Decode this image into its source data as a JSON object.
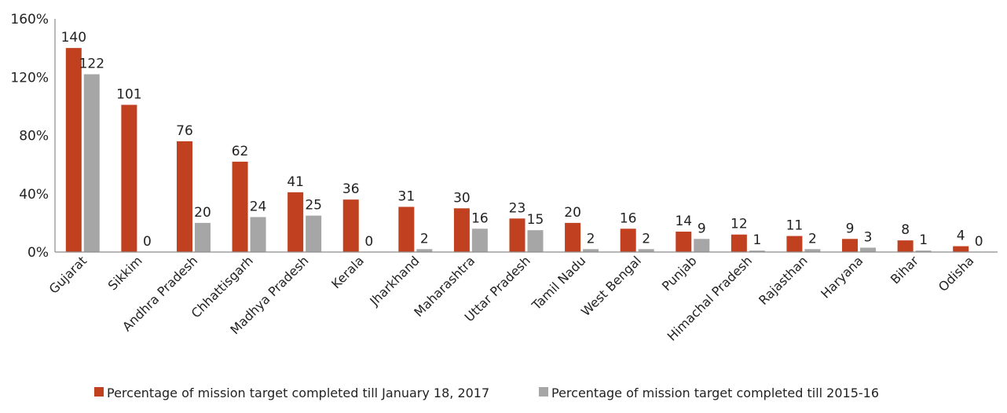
{
  "chart_data": {
    "type": "bar",
    "title": "",
    "xlabel": "",
    "ylabel": "",
    "ylim": [
      0,
      160
    ],
    "yticks": [
      0,
      40,
      80,
      120,
      160
    ],
    "ytick_labels": [
      "0%",
      "40%",
      "80%",
      "120%",
      "160%"
    ],
    "grid": false,
    "legend_position": "bottom",
    "categories": [
      "Gujarat",
      "Sikkim",
      "Andhra Pradesh",
      "Chhattisgarh",
      "Madhya Pradesh",
      "Kerala",
      "Jharkhand",
      "Maharashtra",
      "Uttar Pradesh",
      "Tamil Nadu",
      "West Bengal",
      "Punjab",
      "Himachal Pradesh",
      "Rajasthan",
      "Haryana",
      "Bihar",
      "Odisha"
    ],
    "series": [
      {
        "name": "Percentage of mission target completed till January 18, 2017",
        "color": "#c0401f",
        "values": [
          140,
          101,
          76,
          62,
          41,
          36,
          31,
          30,
          23,
          20,
          16,
          14,
          12,
          11,
          9,
          8,
          4
        ],
        "labels": [
          "140",
          "101",
          "76",
          "62",
          "41",
          "36",
          "31",
          "30",
          "23",
          "20",
          "16",
          "14",
          "12",
          "11",
          "9",
          "8",
          "4"
        ]
      },
      {
        "name": "Percentage of mission target completed till 2015-16",
        "color": "#a6a6a6",
        "values": [
          122,
          0,
          20,
          24,
          25,
          0,
          2,
          16,
          15,
          2,
          2,
          9,
          1,
          2,
          3,
          1,
          0
        ],
        "labels": [
          "122",
          "0",
          "20",
          "24",
          "25",
          "0",
          "2",
          "16",
          "15",
          "2",
          "2",
          "9",
          "1",
          "2",
          "3",
          "1",
          "0"
        ]
      }
    ]
  }
}
